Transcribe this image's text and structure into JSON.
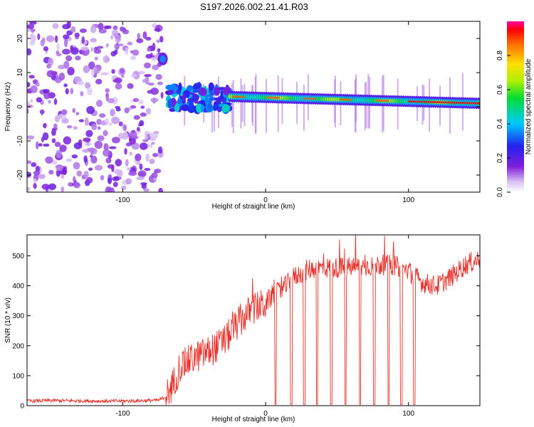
{
  "title": "S197.2026.002.21.41.R03",
  "chart_data": [
    {
      "type": "heatmap",
      "xlabel": "Height of straight line (km)",
      "ylabel": "Frequency (Hz)",
      "xlim": [
        -167,
        150
      ],
      "ylim": [
        -25,
        25
      ],
      "xticks": [
        -100,
        0,
        100
      ],
      "yticks": [
        -20,
        -10,
        0,
        10,
        20
      ],
      "colorbar": {
        "label": "Normalized spectral amplitude",
        "range": [
          0,
          1
        ],
        "ticks": [
          "0.0",
          "0.2",
          "0.4",
          "0.6",
          "0.8"
        ]
      },
      "regions": [
        {
          "name": "noise",
          "x_range": [
            -167,
            -72
          ],
          "f_range": [
            -25,
            25
          ],
          "amplitude": 0.1
        },
        {
          "name": "burst",
          "x": -72,
          "f": 14,
          "amplitude": 0.35
        },
        {
          "name": "onset",
          "x_range": [
            -68,
            -25
          ],
          "f_range": [
            -1,
            6
          ],
          "amplitude": 0.4
        },
        {
          "name": "tone",
          "x_range": [
            -25,
            150
          ],
          "f_start": 3,
          "f_end": 1,
          "amplitude": 0.95
        }
      ]
    },
    {
      "type": "line",
      "xlabel": "Height of straight line (km)",
      "ylabel": "SNR (10 * v/v)",
      "xlim": [
        -167,
        150
      ],
      "ylim": [
        0,
        570
      ],
      "xticks": [
        -100,
        0,
        100
      ],
      "yticks": [
        0,
        100,
        200,
        300,
        400,
        500
      ],
      "series": [
        {
          "name": "SNR",
          "color": "#e8302a",
          "x": [
            -167,
            -150,
            -130,
            -110,
            -90,
            -75,
            -70,
            -65,
            -60,
            -50,
            -40,
            -30,
            -20,
            -10,
            0,
            5,
            10,
            20,
            30,
            40,
            50,
            60,
            70,
            80,
            90,
            100,
            105,
            110,
            120,
            130,
            140,
            150
          ],
          "y": [
            15,
            17,
            16,
            15,
            16,
            18,
            30,
            70,
            130,
            160,
            180,
            210,
            270,
            320,
            340,
            370,
            380,
            430,
            455,
            460,
            460,
            462,
            465,
            470,
            468,
            450,
            430,
            410,
            400,
            430,
            470,
            490
          ],
          "dropouts_x": [
            7,
            18,
            27,
            36,
            46,
            56,
            66,
            76,
            86,
            95,
            104
          ]
        }
      ]
    }
  ]
}
